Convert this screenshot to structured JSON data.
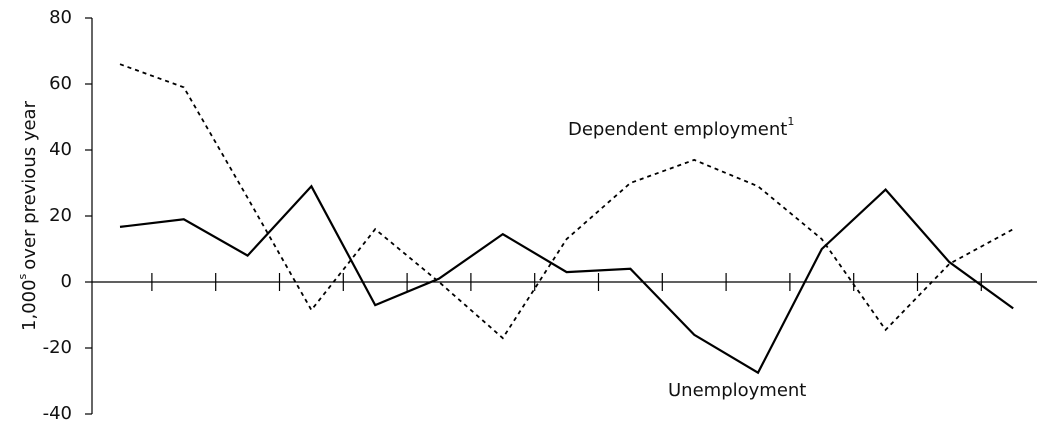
{
  "chart_data": {
    "type": "line",
    "y_label": {
      "text": "1,000",
      "superscript": "s",
      "suffix": "over previous year"
    },
    "categories": [
      null,
      null,
      null,
      null,
      null,
      null,
      null,
      null,
      null,
      null,
      null,
      null,
      null,
      null,
      null
    ],
    "series": [
      {
        "name": "Dependent employment",
        "name_superscript": "1",
        "color": "#000000",
        "dash": true,
        "values": [
          66,
          59,
          25.5,
          -8.5,
          16,
          0,
          -17,
          13,
          30,
          37,
          29,
          13,
          -14.5,
          5.5,
          16
        ]
      },
      {
        "name": "Unemployment",
        "color": "#000000",
        "dash": false,
        "values": [
          16.7,
          19,
          8,
          29,
          -7,
          1,
          14.5,
          3,
          4,
          -16,
          -27.5,
          10,
          28,
          6,
          -8
        ]
      }
    ],
    "ylim": [
      -40,
      80
    ],
    "yticks": [
      -40,
      -20,
      0,
      20,
      40,
      60,
      80
    ],
    "grid": false
  }
}
